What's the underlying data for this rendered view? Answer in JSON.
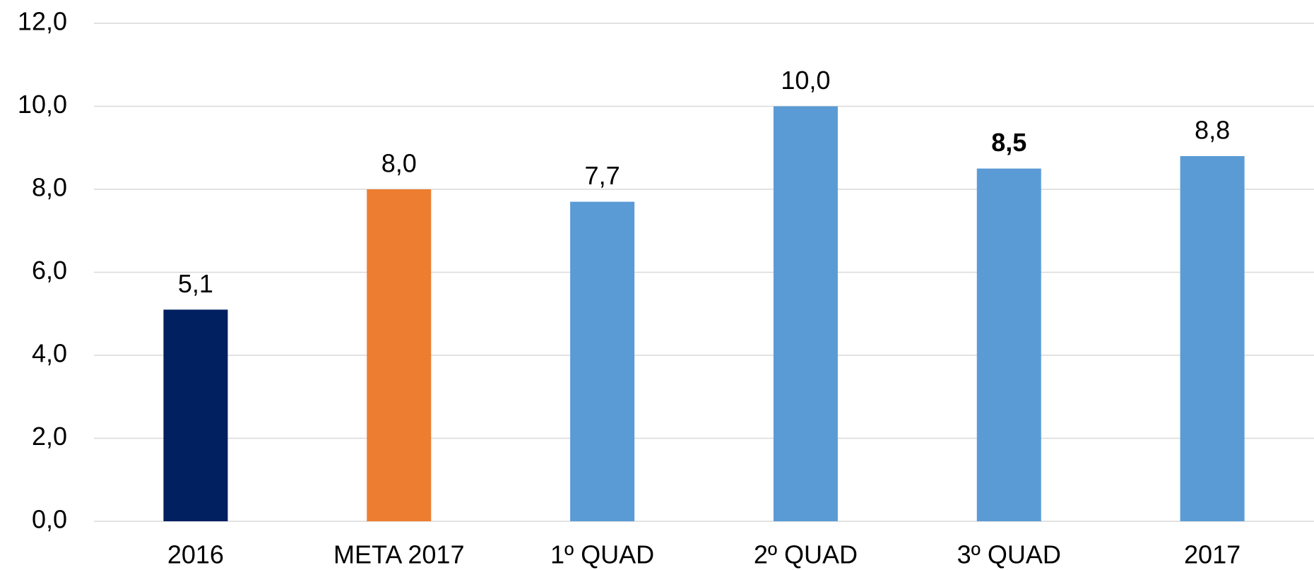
{
  "chart_data": {
    "type": "bar",
    "categories": [
      "2016",
      "META 2017",
      "1º QUAD",
      "2º QUAD",
      "3º QUAD",
      "2017"
    ],
    "values": [
      5.1,
      8.0,
      7.7,
      10.0,
      8.5,
      8.8
    ],
    "value_labels": [
      "5,1",
      "8,0",
      "7,7",
      "10,0",
      "8,5",
      "8,8"
    ],
    "colors": [
      "#002060",
      "#ed7d31",
      "#5b9bd5",
      "#5b9bd5",
      "#5b9bd5",
      "#5b9bd5"
    ],
    "value_label_colors": [
      "#000000",
      "#000000",
      "#000000",
      "#000000",
      "#0070c0",
      "#000000"
    ],
    "value_label_weights": [
      "normal",
      "normal",
      "normal",
      "normal",
      "bold",
      "normal"
    ],
    "ylim": [
      0,
      12
    ],
    "yticks": [
      {
        "value": 0,
        "label": "0,0"
      },
      {
        "value": 2,
        "label": "2,0"
      },
      {
        "value": 4,
        "label": "4,0"
      },
      {
        "value": 6,
        "label": "6,0"
      },
      {
        "value": 8,
        "label": "8,0"
      },
      {
        "value": 10,
        "label": "10,0"
      },
      {
        "value": 12,
        "label": "12,0"
      }
    ],
    "grid": true
  }
}
